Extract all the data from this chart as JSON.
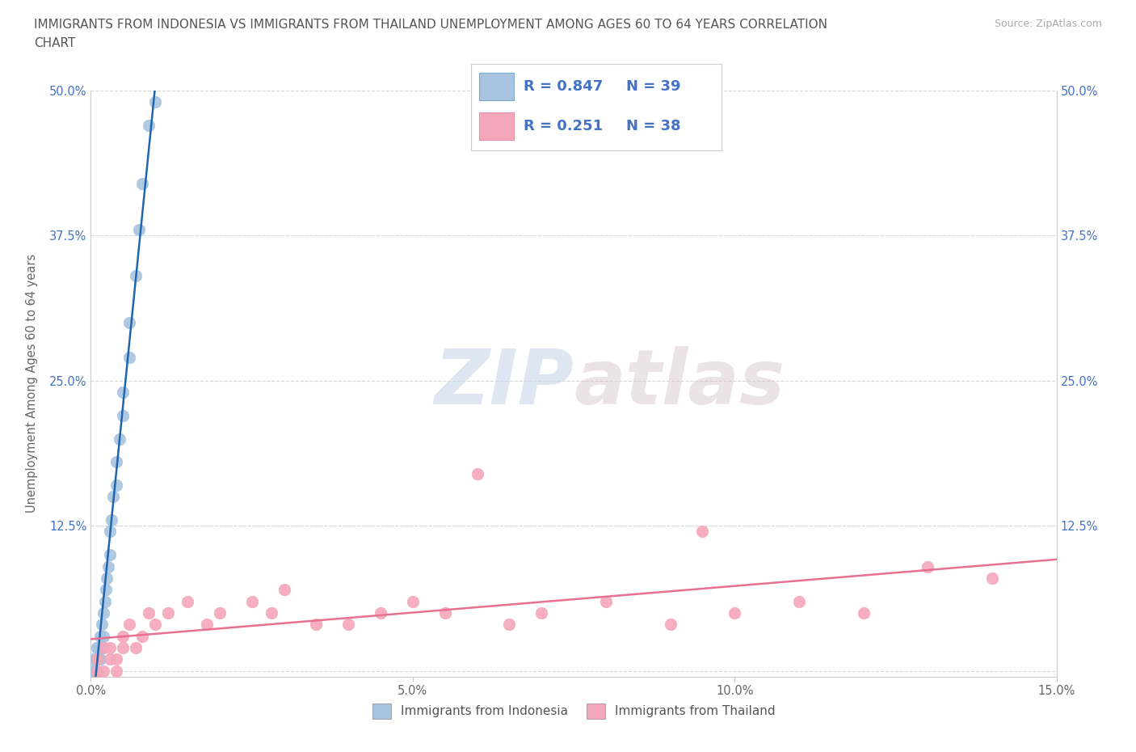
{
  "title_line1": "IMMIGRANTS FROM INDONESIA VS IMMIGRANTS FROM THAILAND UNEMPLOYMENT AMONG AGES 60 TO 64 YEARS CORRELATION",
  "title_line2": "CHART",
  "source": "Source: ZipAtlas.com",
  "ylabel": "Unemployment Among Ages 60 to 64 years",
  "xlim": [
    0.0,
    0.15
  ],
  "ylim": [
    -0.005,
    0.5
  ],
  "xticks": [
    0.0,
    0.05,
    0.1,
    0.15
  ],
  "xticklabels": [
    "0.0%",
    "5.0%",
    "10.0%",
    "15.0%"
  ],
  "yticks": [
    0.0,
    0.125,
    0.25,
    0.375,
    0.5
  ],
  "yticklabels": [
    "",
    "12.5%",
    "25.0%",
    "37.5%",
    "50.0%"
  ],
  "watermark_zip": "ZIP",
  "watermark_atlas": "atlas",
  "indonesia_color": "#a8c4e0",
  "thailand_color": "#f4a7b9",
  "indonesia_edge_color": "#7aaad0",
  "thailand_edge_color": "#e890a8",
  "indonesia_line_color": "#2166ac",
  "thailand_line_color": "#e87090",
  "R_indonesia": 0.847,
  "N_indonesia": 39,
  "R_thailand": 0.251,
  "N_thailand": 38,
  "legend_label_indonesia": "Immigrants from Indonesia",
  "legend_label_thailand": "Immigrants from Thailand",
  "indonesia_x": [
    0.0002,
    0.0003,
    0.0004,
    0.0005,
    0.0006,
    0.0007,
    0.0008,
    0.0009,
    0.001,
    0.001,
    0.0012,
    0.0013,
    0.0014,
    0.0015,
    0.0016,
    0.0017,
    0.0018,
    0.002,
    0.002,
    0.0022,
    0.0023,
    0.0025,
    0.0027,
    0.003,
    0.003,
    0.0032,
    0.0035,
    0.004,
    0.004,
    0.0045,
    0.005,
    0.005,
    0.006,
    0.006,
    0.007,
    0.0075,
    0.008,
    0.009,
    0.01
  ],
  "indonesia_y": [
    0.0,
    0.0,
    0.01,
    0.0,
    0.01,
    0.0,
    0.01,
    0.02,
    0.0,
    0.02,
    0.01,
    0.02,
    0.03,
    0.01,
    0.02,
    0.04,
    0.02,
    0.03,
    0.05,
    0.06,
    0.07,
    0.08,
    0.09,
    0.1,
    0.12,
    0.13,
    0.15,
    0.16,
    0.18,
    0.2,
    0.22,
    0.24,
    0.27,
    0.3,
    0.34,
    0.38,
    0.42,
    0.47,
    0.49
  ],
  "thailand_x": [
    0.001,
    0.001,
    0.002,
    0.002,
    0.003,
    0.003,
    0.004,
    0.004,
    0.005,
    0.005,
    0.006,
    0.007,
    0.008,
    0.009,
    0.01,
    0.012,
    0.015,
    0.018,
    0.02,
    0.025,
    0.028,
    0.03,
    0.035,
    0.04,
    0.045,
    0.05,
    0.055,
    0.06,
    0.065,
    0.07,
    0.08,
    0.09,
    0.095,
    0.1,
    0.11,
    0.12,
    0.13,
    0.14
  ],
  "thailand_y": [
    0.0,
    0.01,
    0.0,
    0.02,
    0.01,
    0.02,
    0.0,
    0.01,
    0.02,
    0.03,
    0.04,
    0.02,
    0.03,
    0.05,
    0.04,
    0.05,
    0.06,
    0.04,
    0.05,
    0.06,
    0.05,
    0.07,
    0.04,
    0.04,
    0.05,
    0.06,
    0.05,
    0.17,
    0.04,
    0.05,
    0.06,
    0.04,
    0.12,
    0.05,
    0.06,
    0.05,
    0.09,
    0.08
  ]
}
